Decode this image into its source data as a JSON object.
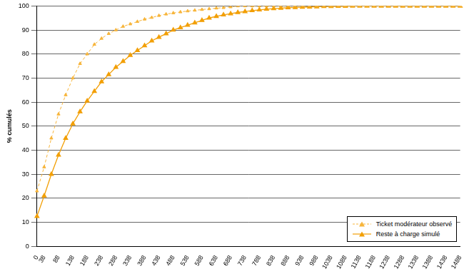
{
  "chart_data": {
    "type": "line",
    "ylabel": "% cumulés",
    "categories": [
      "0",
      "38",
      null,
      "88",
      null,
      "138",
      null,
      "188",
      null,
      "238",
      null,
      "288",
      null,
      "338",
      null,
      "388",
      null,
      "438",
      null,
      "488",
      null,
      "538",
      null,
      "588",
      null,
      "638",
      null,
      "688",
      null,
      "738",
      null,
      "788",
      null,
      "838",
      null,
      "888",
      null,
      "938",
      null,
      "988",
      null,
      "1038",
      null,
      "1088",
      null,
      "1138",
      null,
      "1188",
      null,
      "1238",
      null,
      "1288",
      null,
      "1338",
      null,
      "1388",
      null,
      "1438",
      null,
      "1488"
    ],
    "series": [
      {
        "name": "Ticket modérateur observé",
        "color": "#f7b53b",
        "marker": "triangle",
        "line_style": "dashed",
        "values": [
          23,
          33,
          45,
          55,
          63,
          70,
          76,
          80,
          84,
          86.5,
          88.5,
          90,
          91.5,
          92.5,
          93.5,
          94.5,
          95.2,
          96,
          96.6,
          97.1,
          97.5,
          97.9,
          98.2,
          98.5,
          98.8,
          99.1,
          99.3,
          99.6,
          100,
          100,
          100,
          100,
          100,
          100,
          100,
          100,
          100,
          100,
          100,
          100,
          100,
          100,
          100,
          100,
          100,
          100,
          100,
          100,
          100,
          100,
          100,
          100,
          100,
          100,
          100,
          100,
          100,
          100,
          100,
          100
        ]
      },
      {
        "name": "Reste à charge simulé",
        "color": "#f29f05",
        "marker": "triangle",
        "line_style": "solid",
        "values": [
          12.5,
          21,
          30,
          38,
          45,
          51,
          56,
          60.5,
          64.5,
          68.5,
          71.5,
          74.5,
          77,
          79.5,
          81.5,
          83.5,
          85.5,
          87,
          88.5,
          90,
          91,
          92,
          93,
          94,
          95,
          95.7,
          96.3,
          96.8,
          97.3,
          97.7,
          98.1,
          98.4,
          98.7,
          98.9,
          99.1,
          99.3,
          99.4,
          99.5,
          99.6,
          99.7,
          99.8,
          99.8,
          99.9,
          99.9,
          100,
          100,
          100,
          100,
          100,
          100,
          100,
          100,
          100,
          100,
          100,
          100,
          100,
          100,
          100,
          100
        ]
      }
    ],
    "ylim": [
      0,
      100
    ],
    "yticks": [
      0,
      10,
      20,
      30,
      40,
      50,
      60,
      70,
      80,
      90,
      100
    ],
    "grid": true,
    "legend": "lower right"
  }
}
